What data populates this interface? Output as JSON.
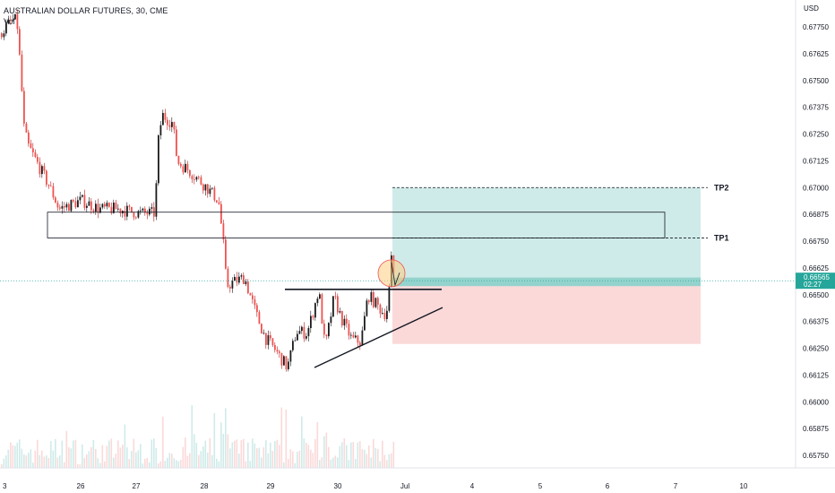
{
  "header": {
    "title": "AUSTRALIAN DOLLAR FUTURES, 30, CME",
    "volume_label": "Vol"
  },
  "chart_data": {
    "type": "candlestick",
    "currency_label": "USD",
    "price_ticks": [
      "0.67750",
      "0.67625",
      "0.67500",
      "0.67375",
      "0.67250",
      "0.67125",
      "0.67000",
      "0.66875",
      "0.66750",
      "0.66625",
      "0.66500",
      "0.66375",
      "0.66250",
      "0.66125",
      "0.66000",
      "0.65875",
      "0.65750"
    ],
    "time_ticks": [
      "3",
      "26",
      "27",
      "28",
      "29",
      "30",
      "Jul",
      "4",
      "5",
      "6",
      "7",
      "10"
    ],
    "last_price": {
      "value": "0.66565",
      "countdown": "02:27",
      "color": "#26a69a"
    },
    "colors": {
      "up": "#26a69a",
      "down": "#ef5350",
      "text": "#131722"
    },
    "annotations": {
      "targets": [
        {
          "label": "TP2",
          "price": 0.67
        },
        {
          "label": "TP1",
          "price": 0.66765
        }
      ],
      "zone": {
        "top": 0.66885,
        "bottom": 0.66765
      },
      "entry": 0.6654,
      "stop": 0.6627,
      "resistance": 0.66525,
      "support_line": [
        {
          "x": "29",
          "price": 0.6616
        },
        {
          "x": "30",
          "price": 0.66445
        }
      ]
    },
    "series": [
      {
        "name": "price",
        "anchors": [
          [
            0,
            0.6772
          ],
          [
            12,
            0.6778
          ],
          [
            18,
            0.6778
          ],
          [
            22,
            0.6755
          ],
          [
            26,
            0.6728
          ],
          [
            30,
            0.672
          ],
          [
            45,
            0.6708
          ],
          [
            55,
            0.67
          ],
          [
            65,
            0.669
          ],
          [
            90,
            0.6694
          ],
          [
            110,
            0.669
          ],
          [
            130,
            0.669
          ],
          [
            155,
            0.6688
          ],
          [
            172,
            0.6688
          ],
          [
            176,
            0.6722
          ],
          [
            180,
            0.6734
          ],
          [
            192,
            0.673
          ],
          [
            197,
            0.6712
          ],
          [
            210,
            0.6708
          ],
          [
            230,
            0.67
          ],
          [
            243,
            0.6694
          ],
          [
            248,
            0.6676
          ],
          [
            252,
            0.6654
          ],
          [
            260,
            0.6656
          ],
          [
            272,
            0.6658
          ],
          [
            285,
            0.6641
          ],
          [
            295,
            0.663
          ],
          [
            305,
            0.6625
          ],
          [
            320,
            0.6616
          ],
          [
            330,
            0.6633
          ],
          [
            342,
            0.6632
          ],
          [
            355,
            0.6652
          ],
          [
            362,
            0.6625
          ],
          [
            372,
            0.6649
          ],
          [
            380,
            0.6639
          ],
          [
            392,
            0.6629
          ],
          [
            402,
            0.6628
          ],
          [
            410,
            0.665
          ],
          [
            420,
            0.6645
          ],
          [
            428,
            0.6641
          ],
          [
            432,
            0.6644
          ],
          [
            436,
            0.6666
          ],
          [
            440,
            0.66565
          ]
        ]
      }
    ]
  }
}
